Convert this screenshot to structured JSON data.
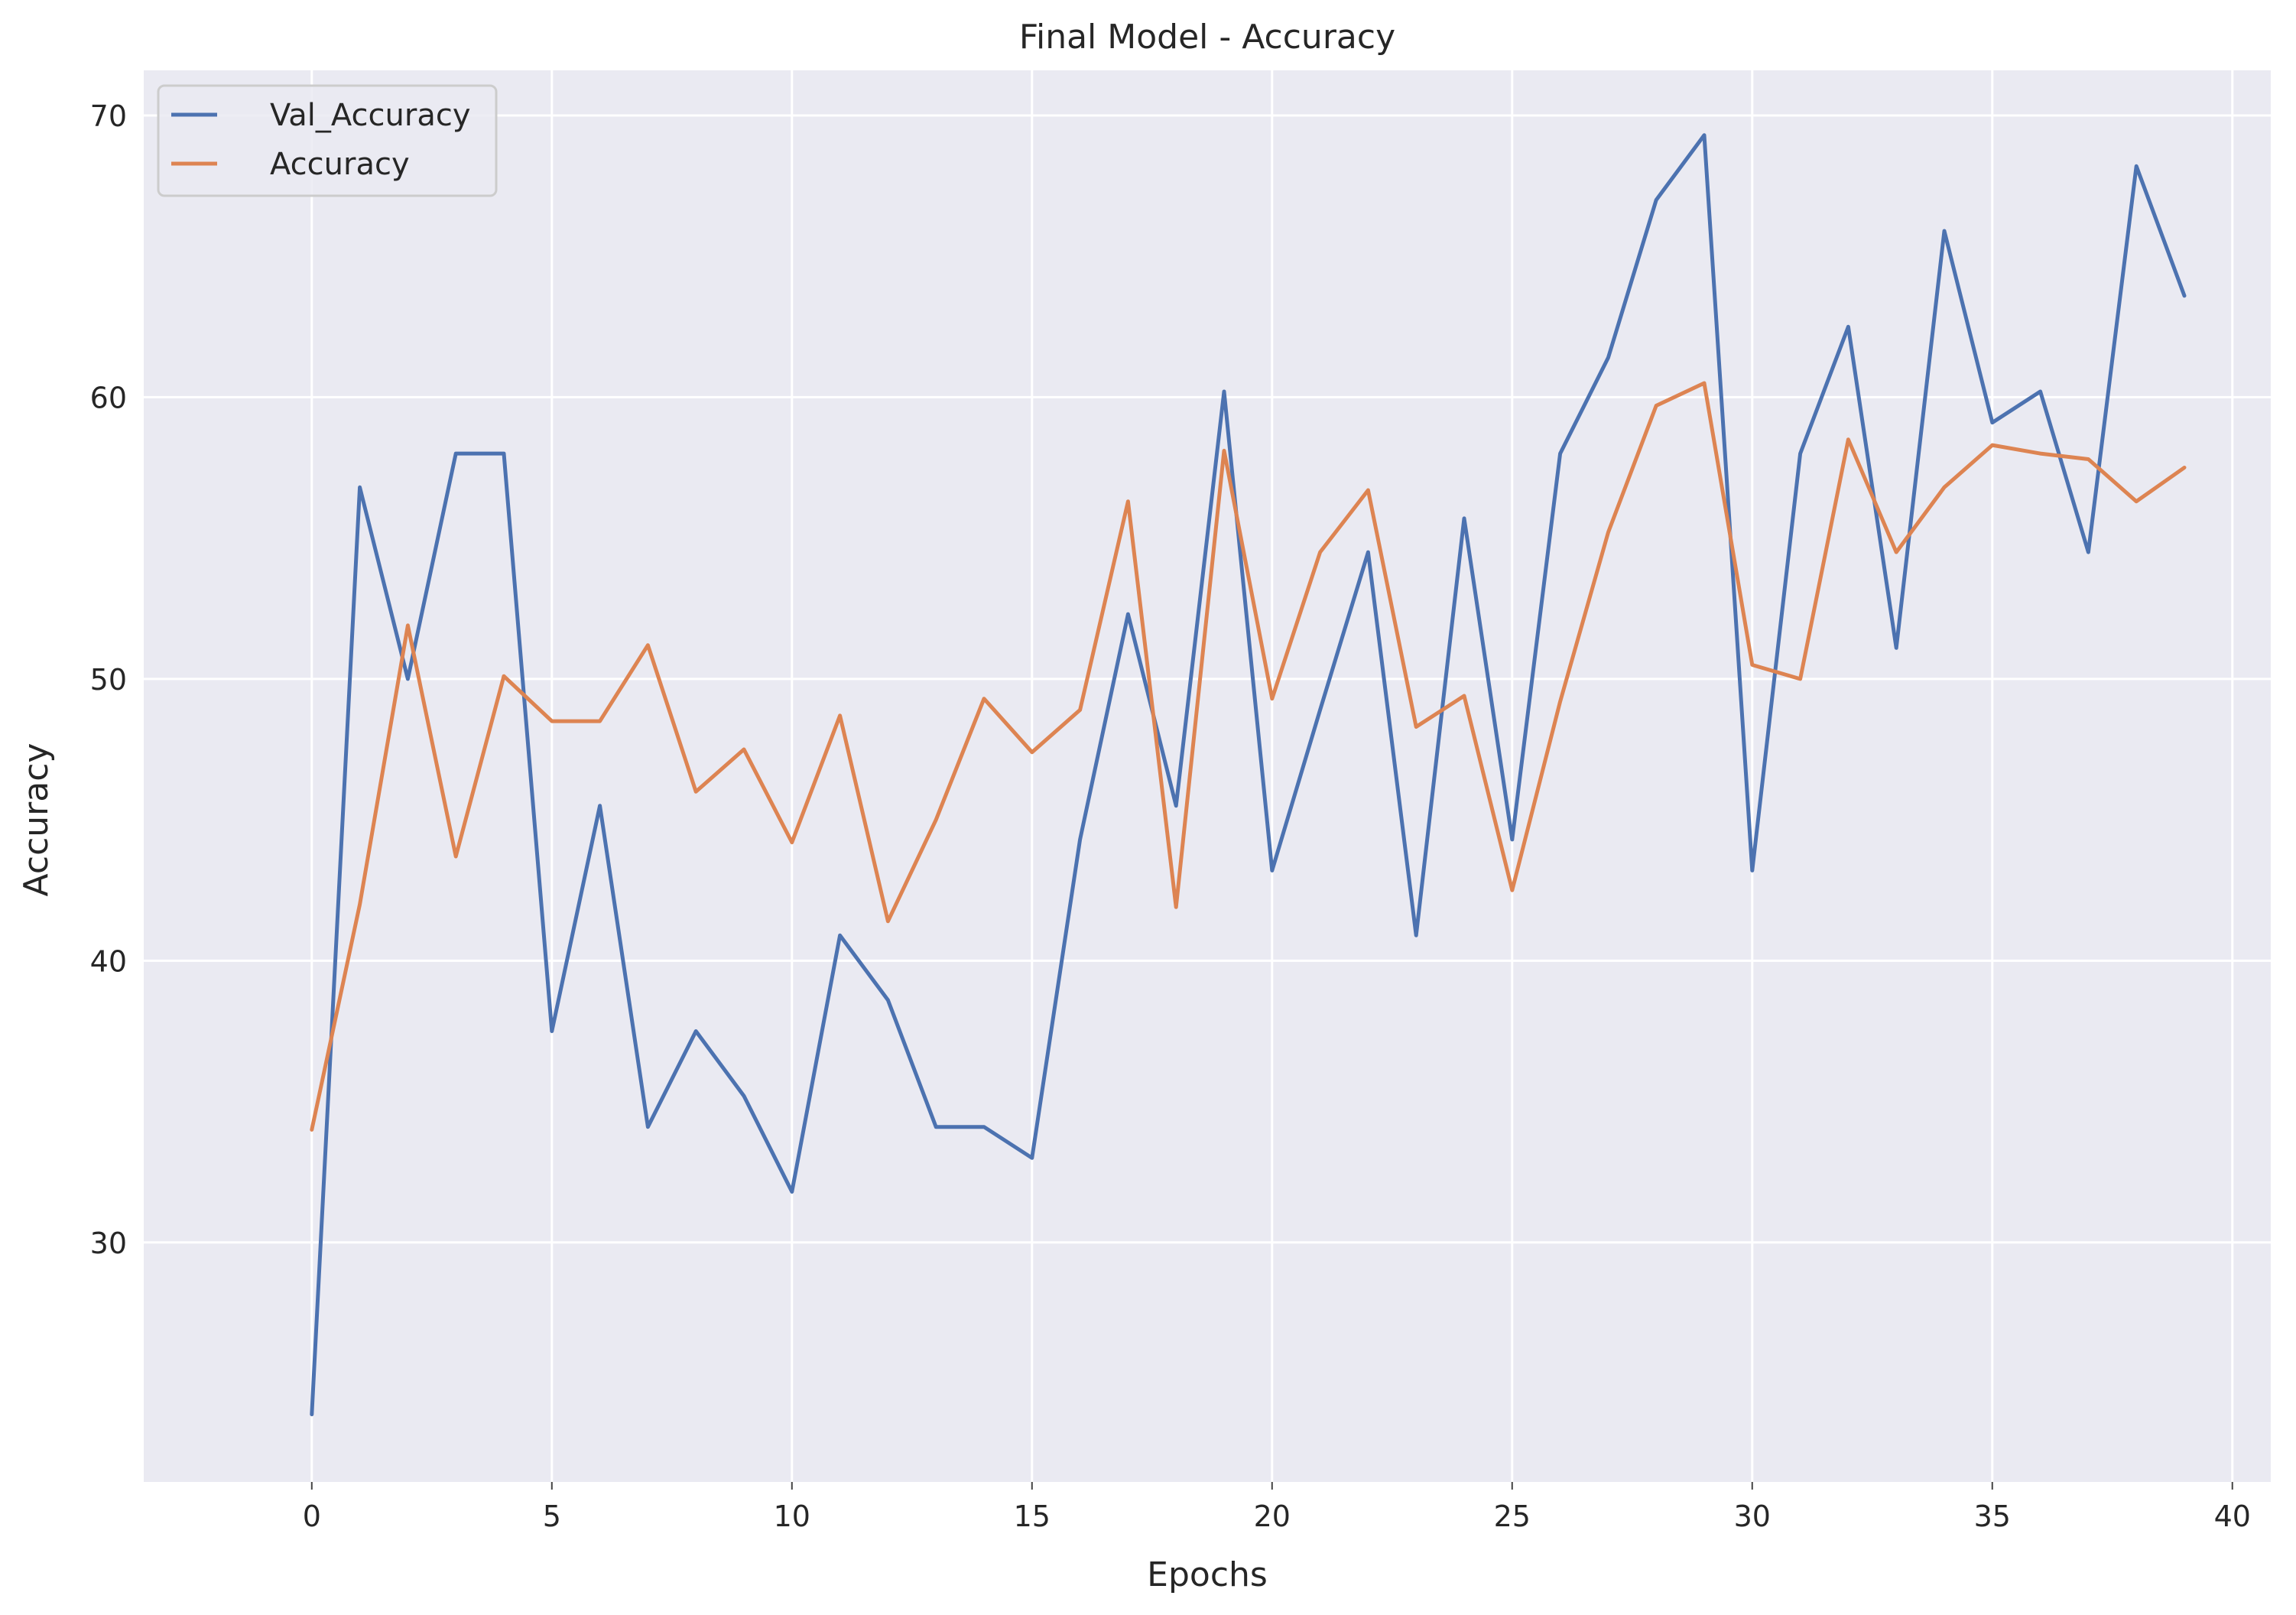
{
  "chart_data": {
    "type": "line",
    "title": "Final Model - Accuracy",
    "xlabel": "Epochs",
    "ylabel": "Accuracy",
    "xlim": [
      -3.5,
      40.8
    ],
    "ylim": [
      21.5,
      71.6
    ],
    "xticks": [
      0,
      5,
      10,
      15,
      20,
      25,
      30,
      35,
      40
    ],
    "yticks": [
      30,
      40,
      50,
      60,
      70
    ],
    "grid": true,
    "legend_position": "top-left",
    "x": [
      0,
      1,
      2,
      3,
      4,
      5,
      6,
      7,
      8,
      9,
      10,
      11,
      12,
      13,
      14,
      15,
      16,
      17,
      18,
      19,
      20,
      21,
      22,
      23,
      24,
      25,
      26,
      27,
      28,
      29,
      30,
      31,
      32,
      33,
      34,
      35,
      36,
      37,
      38,
      39
    ],
    "series": [
      {
        "name": "Val_Accuracy",
        "color": "#4c72b0",
        "values": [
          23.9,
          56.8,
          50.0,
          58.0,
          58.0,
          37.5,
          45.5,
          34.1,
          37.5,
          35.2,
          31.8,
          40.9,
          38.6,
          34.1,
          34.1,
          33.0,
          44.3,
          52.3,
          45.5,
          60.2,
          43.2,
          48.9,
          54.5,
          40.9,
          55.7,
          44.3,
          58.0,
          61.4,
          67.0,
          69.3,
          43.2,
          58.0,
          62.5,
          51.1,
          65.9,
          59.1,
          60.2,
          54.5,
          68.2,
          63.6
        ]
      },
      {
        "name": "Accuracy",
        "color": "#dd8452",
        "values": [
          34.0,
          42.0,
          51.9,
          43.7,
          50.1,
          48.5,
          48.5,
          51.2,
          46.0,
          47.5,
          44.2,
          48.7,
          41.4,
          45.0,
          49.3,
          47.4,
          48.9,
          56.3,
          41.9,
          58.1,
          49.3,
          54.5,
          56.7,
          48.3,
          49.4,
          42.5,
          49.2,
          55.2,
          59.7,
          60.5,
          50.5,
          50.0,
          58.5,
          54.5,
          56.8,
          58.3,
          58.0,
          57.8,
          56.3,
          57.5
        ]
      }
    ]
  }
}
